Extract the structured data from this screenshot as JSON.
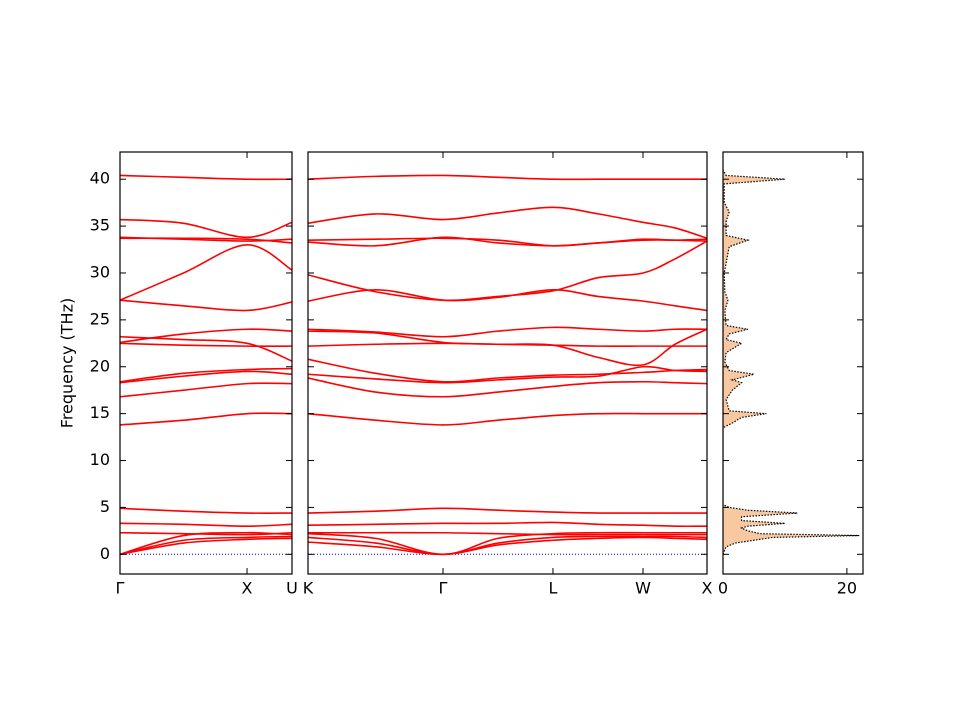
{
  "chart_data": [
    {
      "type": "band",
      "ylabel": "Frequency (THz)",
      "color": "#ff0000",
      "ylim": [
        -2.1,
        42.9
      ],
      "yticks": [
        0,
        5,
        10,
        15,
        20,
        25,
        30,
        35,
        40
      ],
      "xlim": [
        0,
        1.354
      ],
      "xticks": [
        {
          "value": 0,
          "label": "Γ"
        },
        {
          "value": 1,
          "label": "X"
        },
        {
          "value": 1.354,
          "label": "U"
        }
      ],
      "x": [
        0,
        0.5,
        1,
        1.354
      ],
      "series": [
        {
          "values": [
            0,
            1.2,
            1.6,
            1.7
          ]
        },
        {
          "values": [
            0,
            1.5,
            1.8,
            1.9
          ]
        },
        {
          "values": [
            0,
            2.0,
            2.3,
            2.1
          ]
        },
        {
          "values": [
            2.3,
            2.2,
            2.1,
            2.3
          ]
        },
        {
          "values": [
            3.3,
            3.2,
            3.0,
            3.2
          ]
        },
        {
          "values": [
            4.9,
            4.6,
            4.4,
            4.4
          ]
        },
        {
          "values": [
            13.8,
            14.3,
            15.0,
            15.0
          ]
        },
        {
          "values": [
            16.8,
            17.5,
            18.2,
            18.2
          ]
        },
        {
          "values": [
            18.3,
            19.0,
            19.5,
            19.2
          ]
        },
        {
          "values": [
            18.4,
            19.3,
            19.7,
            19.8
          ]
        },
        {
          "values": [
            22.5,
            22.3,
            22.2,
            22.2
          ]
        },
        {
          "values": [
            22.6,
            23.5,
            24.0,
            23.8
          ]
        },
        {
          "values": [
            23.2,
            22.9,
            22.5,
            20.6
          ]
        },
        {
          "values": [
            27.1,
            26.5,
            26.0,
            26.9
          ]
        },
        {
          "values": [
            27.1,
            30.0,
            33.0,
            30.3
          ]
        },
        {
          "values": [
            33.7,
            33.7,
            33.6,
            33.2
          ]
        },
        {
          "values": [
            33.8,
            33.6,
            33.4,
            33.6
          ]
        },
        {
          "values": [
            35.7,
            35.3,
            33.8,
            35.4
          ]
        },
        {
          "values": [
            40.4,
            40.2,
            40.0,
            40.0
          ]
        }
      ]
    },
    {
      "type": "band",
      "color": "#ff0000",
      "xlim": [
        1.354,
        4.496
      ],
      "xticks": [
        {
          "value": 1.354,
          "label": "K"
        },
        {
          "value": 2.417,
          "label": "Γ"
        },
        {
          "value": 3.283,
          "label": "L"
        },
        {
          "value": 3.992,
          "label": "W"
        },
        {
          "value": 4.496,
          "label": "X"
        }
      ],
      "x": [
        1.354,
        1.886,
        2.417,
        2.85,
        3.283,
        3.638,
        3.992,
        4.244,
        4.496
      ],
      "series": [
        {
          "values": [
            1.3,
            0.8,
            0,
            1.0,
            1.5,
            1.7,
            1.8,
            1.7,
            1.6
          ]
        },
        {
          "values": [
            1.8,
            1.2,
            0,
            1.2,
            1.8,
            1.9,
            1.9,
            1.9,
            1.8
          ]
        },
        {
          "values": [
            2.2,
            1.7,
            0,
            1.7,
            2.2,
            2.3,
            2.3,
            2.3,
            2.3
          ]
        },
        {
          "values": [
            2.3,
            2.3,
            2.3,
            2.2,
            2.1,
            2.1,
            2.1,
            2.1,
            2.1
          ]
        },
        {
          "values": [
            3.1,
            3.2,
            3.3,
            3.3,
            3.4,
            3.2,
            3.1,
            3.0,
            3.0
          ]
        },
        {
          "values": [
            4.4,
            4.6,
            4.9,
            4.7,
            4.5,
            4.4,
            4.4,
            4.4,
            4.4
          ]
        },
        {
          "values": [
            15.0,
            14.3,
            13.8,
            14.3,
            14.8,
            15.0,
            15.0,
            15.0,
            15.0
          ]
        },
        {
          "values": [
            18.8,
            17.3,
            16.8,
            17.3,
            17.9,
            18.3,
            18.4,
            18.3,
            18.2
          ]
        },
        {
          "values": [
            19.2,
            18.7,
            18.3,
            18.6,
            18.9,
            19.0,
            20.0,
            19.6,
            19.5
          ]
        },
        {
          "values": [
            20.8,
            19.3,
            18.4,
            18.8,
            19.1,
            19.2,
            19.4,
            19.6,
            19.7
          ]
        },
        {
          "values": [
            22.2,
            22.4,
            22.5,
            22.4,
            22.3,
            22.2,
            22.2,
            22.2,
            22.2
          ]
        },
        {
          "values": [
            23.8,
            23.6,
            22.6,
            22.4,
            22.3,
            21.0,
            20.2,
            22.4,
            24.0
          ]
        },
        {
          "values": [
            24.0,
            23.7,
            23.2,
            23.8,
            24.2,
            24.0,
            23.8,
            24.0,
            24.0
          ]
        },
        {
          "values": [
            27.0,
            28.2,
            27.1,
            27.4,
            28.2,
            27.5,
            27.0,
            26.5,
            26.0
          ]
        },
        {
          "values": [
            29.8,
            28.0,
            27.1,
            27.5,
            28.1,
            29.5,
            30.0,
            31.5,
            33.4
          ]
        },
        {
          "values": [
            33.5,
            33.6,
            33.7,
            33.5,
            32.9,
            33.2,
            33.5,
            33.5,
            33.4
          ]
        },
        {
          "values": [
            33.3,
            32.9,
            33.8,
            33.2,
            32.9,
            33.2,
            33.6,
            33.5,
            33.6
          ]
        },
        {
          "values": [
            35.3,
            36.3,
            35.7,
            36.4,
            37.0,
            36.3,
            35.4,
            34.8,
            33.7
          ]
        },
        {
          "values": [
            40.0,
            40.3,
            40.4,
            40.2,
            40.0,
            40.0,
            40.0,
            40.0,
            40.0
          ]
        }
      ]
    },
    {
      "type": "dos",
      "color": "#000000",
      "fill": "#f4a460",
      "xlim": [
        0,
        22.6
      ],
      "xticks": [
        0,
        20
      ],
      "y": [
        0,
        0.8,
        1.2,
        1.5,
        1.8,
        2.0,
        2.2,
        2.5,
        2.8,
        3.0,
        3.3,
        3.6,
        4.0,
        4.4,
        4.7,
        5.0,
        5.3,
        13.5,
        14,
        14.6,
        15.0,
        15.3,
        16.5,
        17.5,
        18.3,
        18.6,
        19.2,
        19.6,
        20.5,
        21.5,
        22.5,
        22.9,
        23.5,
        24.0,
        24.4,
        26,
        27.1,
        28,
        30,
        32.8,
        33.5,
        34,
        35.5,
        36.5,
        37.5,
        39.5,
        40,
        40.4,
        41
      ],
      "values": [
        0,
        0.5,
        2,
        5,
        8,
        22,
        6,
        4,
        3,
        4,
        10,
        3,
        3,
        12,
        4,
        1,
        0,
        0,
        1.5,
        3,
        7,
        1,
        0.5,
        1.5,
        3,
        1.5,
        5,
        1,
        0.3,
        0.5,
        3,
        0.5,
        1,
        4,
        0.5,
        0.3,
        0.8,
        0.3,
        0.2,
        1,
        4,
        0.5,
        0.5,
        1,
        0.2,
        0.2,
        10,
        0.5,
        0
      ]
    }
  ]
}
